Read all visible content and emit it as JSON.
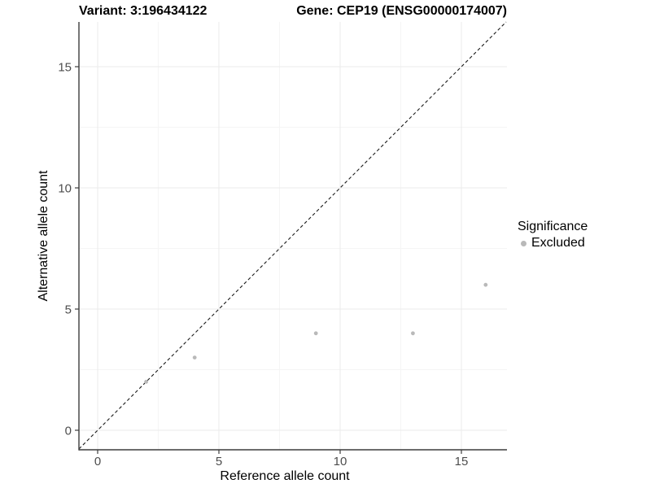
{
  "chart_data": {
    "type": "scatter",
    "title_left": "Variant: 3:196434122",
    "title_right": "Gene: CEP19 (ENSG00000174007)",
    "xlabel": "Reference allele count",
    "ylabel": "Alternative allele count",
    "xlim": [
      -0.8,
      16.9
    ],
    "ylim": [
      -0.8,
      16.9
    ],
    "major_ticks": [
      0,
      5,
      10,
      15
    ],
    "minor_gridlines": [
      2.5,
      7.5,
      12.5
    ],
    "grid": "on",
    "legend": {
      "title": "Significance",
      "position": "right",
      "entries": [
        {
          "label": "Excluded",
          "color": "#b9b9b9"
        }
      ]
    },
    "series": [
      {
        "name": "Excluded",
        "color": "#b9b9b9",
        "points": [
          [
            2,
            2
          ],
          [
            4,
            3
          ],
          [
            9,
            4
          ],
          [
            13,
            4
          ],
          [
            16,
            6
          ]
        ]
      }
    ],
    "reference_line": {
      "slope": 1,
      "intercept": 0,
      "style": "dashed",
      "color": "#1a1a1a"
    }
  },
  "colors": {
    "background": "#ffffff",
    "grid_major": "#ebebeb",
    "grid_minor": "#f5f5f5",
    "axis_line": "#3c3c3c",
    "tick_label": "#4d4d4d",
    "point": "#b9b9b9"
  }
}
